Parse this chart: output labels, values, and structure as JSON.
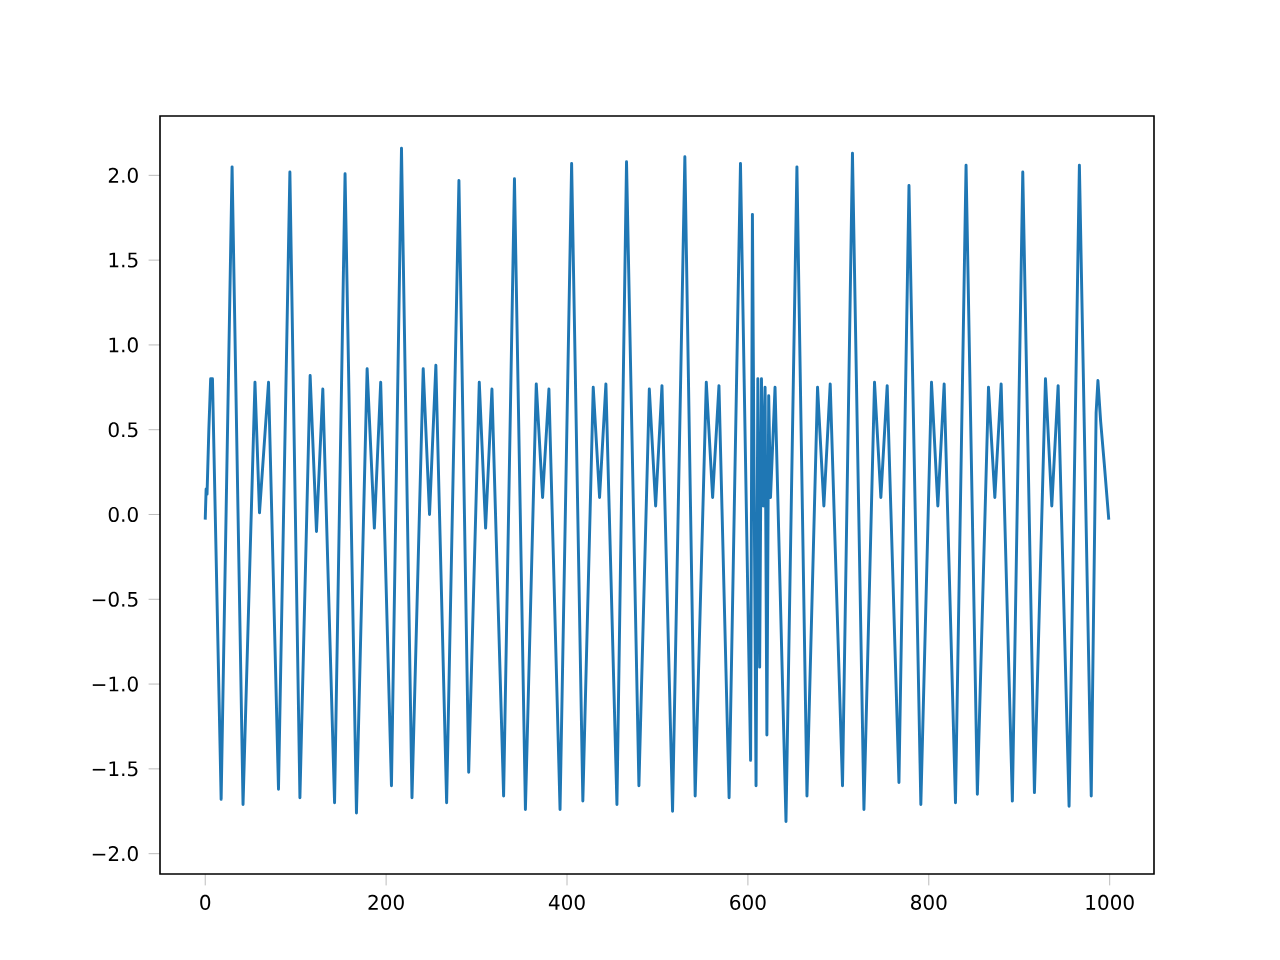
{
  "chart_data": {
    "type": "line",
    "color": "#1f77b4",
    "line_style": "solid",
    "marker": "none",
    "grid": false,
    "x": [
      0,
      1,
      2,
      4,
      6,
      8,
      17.6,
      29.7,
      41.8,
      55,
      60,
      70,
      81.0,
      93.6,
      104.7,
      116,
      123,
      130,
      143.0,
      154.6,
      167.2,
      179,
      187,
      194,
      205.9,
      217.0,
      228.6,
      241,
      248,
      255,
      266.9,
      280.5,
      291.3,
      303,
      310,
      317,
      329.9,
      341.9,
      354.0,
      366,
      373,
      380,
      392.3,
      405.1,
      417.5,
      429,
      436,
      443,
      455.2,
      465.8,
      479.5,
      491,
      498,
      505,
      516.7,
      530.3,
      541.7,
      554,
      561,
      568,
      579.2,
      591.8,
      603,
      605,
      609,
      611,
      613,
      615,
      617,
      619,
      621,
      623,
      625,
      630,
      642.1,
      654.2,
      665.3,
      677,
      684,
      691,
      704.6,
      715.6,
      728.3,
      740,
      747,
      754,
      767.0,
      778.1,
      791.2,
      803,
      810,
      817,
      829.5,
      841.2,
      853.7,
      866,
      873,
      880,
      892.4,
      903.9,
      916.8,
      929,
      936,
      943,
      955.1,
      966.5,
      979.6,
      985,
      987,
      990,
      994,
      999
    ],
    "values": [
      -0.03,
      0.15,
      0.12,
      0.5,
      0.8,
      0.8,
      -1.68,
      2.05,
      -1.71,
      0.78,
      0.01,
      0.78,
      -1.62,
      2.02,
      -1.67,
      0.82,
      -0.1,
      0.74,
      -1.7,
      2.01,
      -1.76,
      0.86,
      -0.08,
      0.78,
      -1.6,
      2.16,
      -1.67,
      0.86,
      0.0,
      0.88,
      -1.7,
      1.97,
      -1.52,
      0.78,
      -0.08,
      0.74,
      -1.66,
      1.98,
      -1.74,
      0.77,
      0.1,
      0.74,
      -1.74,
      2.07,
      -1.69,
      0.75,
      0.1,
      0.77,
      -1.71,
      2.08,
      -1.6,
      0.74,
      0.05,
      0.76,
      -1.75,
      2.11,
      -1.66,
      0.78,
      0.1,
      0.76,
      -1.67,
      2.07,
      -1.45,
      1.77,
      -1.6,
      0.8,
      -0.9,
      0.8,
      0.05,
      0.75,
      -1.3,
      0.7,
      0.1,
      0.75,
      -1.81,
      2.05,
      -1.66,
      0.75,
      0.05,
      0.77,
      -1.6,
      2.13,
      -1.74,
      0.78,
      0.1,
      0.76,
      -1.58,
      1.94,
      -1.71,
      0.78,
      0.05,
      0.77,
      -1.7,
      2.06,
      -1.65,
      0.75,
      0.1,
      0.77,
      -1.69,
      2.02,
      -1.64,
      0.8,
      0.05,
      0.76,
      -1.72,
      2.06,
      -1.66,
      0.6,
      0.79,
      0.55,
      0.3,
      -0.03
    ],
    "xlim": [
      -50,
      1049
    ],
    "ylim": [
      -2.12,
      2.35
    ],
    "xticks": [
      0,
      200,
      400,
      600,
      800,
      1000
    ],
    "yticks": [
      {
        "value": -2.0,
        "label": "−2.0"
      },
      {
        "value": -1.5,
        "label": "−1.5"
      },
      {
        "value": -1.0,
        "label": "−1.0"
      },
      {
        "value": -0.5,
        "label": "−0.5"
      },
      {
        "value": 0.0,
        "label": "0.0"
      },
      {
        "value": 0.5,
        "label": "0.5"
      },
      {
        "value": 1.0,
        "label": "1.0"
      },
      {
        "value": 1.5,
        "label": "1.5"
      },
      {
        "value": 2.0,
        "label": "2.0"
      }
    ]
  }
}
